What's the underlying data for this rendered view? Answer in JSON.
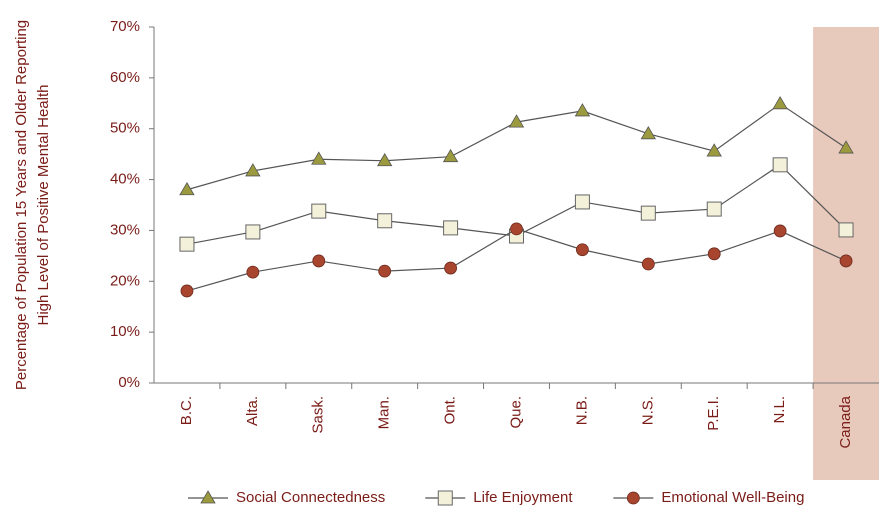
{
  "chart_data": {
    "type": "line",
    "ylabel": [
      "Percentage of Population 15 Years and Older Reporting",
      "High Level of Positive Mental Health"
    ],
    "categories": [
      "B.C.",
      "Alta.",
      "Sask.",
      "Man.",
      "Ont.",
      "Que.",
      "N.B.",
      "N.S.",
      "P.E.I.",
      "N.L.",
      "Canada"
    ],
    "series": [
      {
        "name": "Social Connectedness",
        "color": "#9c9a3e",
        "marker": "triangle",
        "values": [
          38,
          41.7,
          44,
          43.7,
          44.5,
          51.3,
          53.5,
          49,
          45.6,
          54.9,
          46.2
        ]
      },
      {
        "name": "Life Enjoyment",
        "color": "#f3f1da",
        "marker": "square",
        "values": [
          27.3,
          29.7,
          33.8,
          31.9,
          30.5,
          28.9,
          35.6,
          33.4,
          34.2,
          42.9,
          30.1
        ]
      },
      {
        "name": "Emotional Well-Being",
        "color": "#a8452f",
        "marker": "circle",
        "values": [
          18.1,
          21.8,
          24,
          22,
          22.6,
          30.3,
          26.2,
          23.4,
          25.4,
          29.9,
          24
        ]
      }
    ],
    "highlight": {
      "index": 10,
      "color": "#e8cabd"
    },
    "ylim": [
      0,
      70
    ],
    "yticks": [
      {
        "value": 0,
        "label": "0%"
      },
      {
        "value": 10,
        "label": "10%"
      },
      {
        "value": 20,
        "label": "20%"
      },
      {
        "value": 30,
        "label": "30%"
      },
      {
        "value": 40,
        "label": "40%"
      },
      {
        "value": 50,
        "label": "50%"
      },
      {
        "value": 60,
        "label": "60%"
      },
      {
        "value": 70,
        "label": "70%"
      }
    ],
    "legend": "bottom"
  }
}
